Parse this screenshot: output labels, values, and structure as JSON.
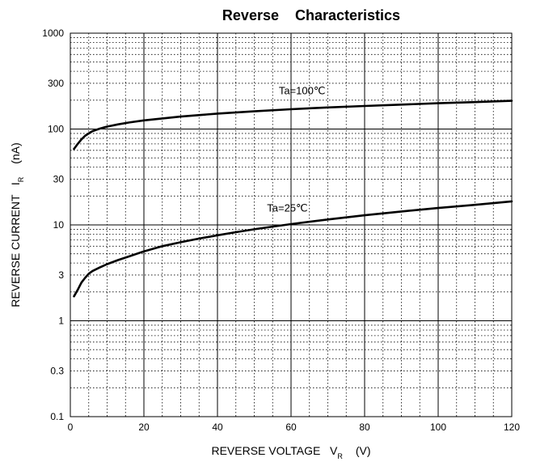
{
  "chart_data": {
    "type": "line",
    "title": "Reverse    Characteristics",
    "xlabel": {
      "main": "REVERSE VOLTAGE   V",
      "sub": "R",
      "unit": "(V)"
    },
    "ylabel": {
      "main": "REVERSE CURRENT   I",
      "sub": "R",
      "unit": "(nA)"
    },
    "x_scale": "linear",
    "y_scale": "log",
    "xlim": [
      0,
      120
    ],
    "ylim": [
      0.1,
      1000
    ],
    "x_ticks": [
      0,
      20,
      40,
      60,
      80,
      100,
      120
    ],
    "y_ticks": [
      0.1,
      0.3,
      1,
      3,
      10,
      30,
      100,
      300,
      1000
    ],
    "x_tick_labels": [
      "0",
      "20",
      "40",
      "60",
      "80",
      "100",
      "120"
    ],
    "y_tick_labels": [
      "0.1",
      "0.3",
      "1",
      "3",
      "10",
      "30",
      "100",
      "300",
      "1000"
    ],
    "grid": true,
    "series": [
      {
        "name": "Ta=100℃",
        "x": [
          1,
          2,
          3,
          4,
          5,
          6,
          8,
          10,
          13,
          16,
          20,
          25,
          30,
          40,
          50,
          60,
          70,
          80,
          90,
          100,
          110,
          120
        ],
        "values": [
          62,
          70,
          78,
          85,
          90,
          95,
          101,
          106,
          112,
          117,
          123,
          129,
          135,
          145,
          153,
          161,
          168,
          174,
          180,
          186,
          191,
          197
        ]
      },
      {
        "name": "Ta=25℃",
        "x": [
          1,
          2,
          3,
          4,
          5,
          6,
          8,
          10,
          13,
          16,
          20,
          25,
          30,
          35,
          40,
          45,
          50,
          55,
          60,
          70,
          80,
          90,
          100,
          110,
          120
        ],
        "values": [
          1.8,
          2.1,
          2.5,
          2.8,
          3.1,
          3.3,
          3.6,
          3.9,
          4.3,
          4.7,
          5.3,
          6.0,
          6.6,
          7.2,
          7.8,
          8.4,
          9.0,
          9.6,
          10.2,
          11.4,
          12.6,
          13.8,
          15.0,
          16.2,
          17.6
        ]
      }
    ]
  }
}
